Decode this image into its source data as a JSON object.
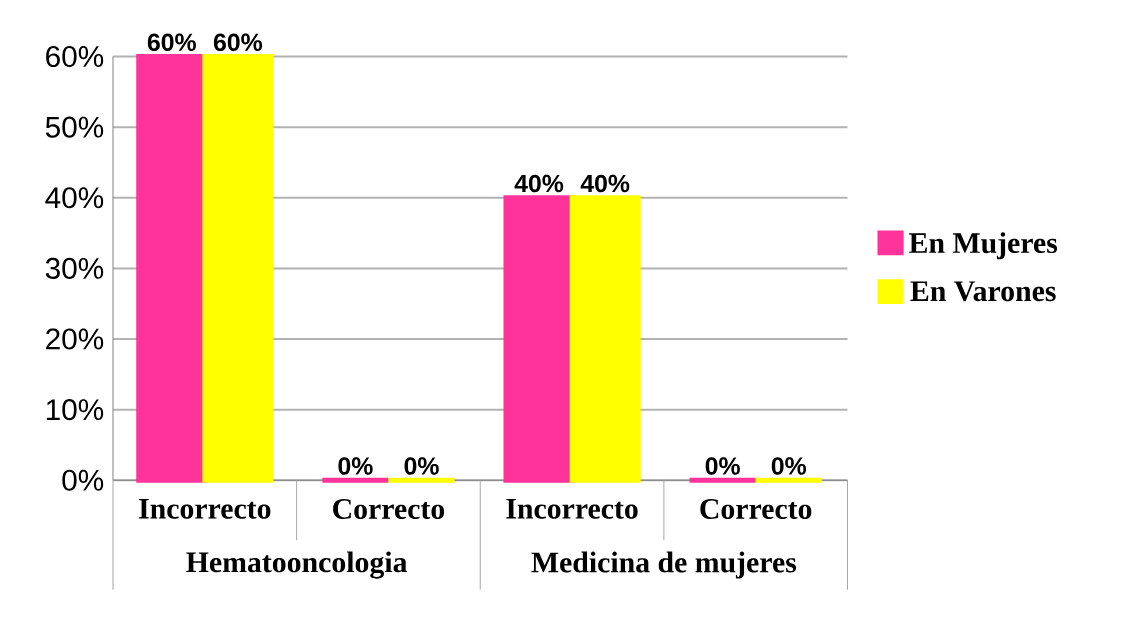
{
  "chart_data": {
    "type": "bar",
    "categories": [
      "Incorrecto",
      "Correcto",
      "Incorrecto",
      "Correcto"
    ],
    "series": [
      {
        "name": "En Mujeres",
        "color": "#ff3399",
        "values": [
          60,
          0,
          40,
          0
        ],
        "value_labels": [
          "60%",
          "0%",
          "40%",
          "0%"
        ]
      },
      {
        "name": "En Varones",
        "color": "#ffff00",
        "values": [
          60,
          0,
          40,
          0
        ],
        "value_labels": [
          "60%",
          "0%",
          "40%",
          "0%"
        ]
      }
    ],
    "annotations": [
      "Hematooncologia",
      "Medicina de mujeres"
    ],
    "ylim": [
      0,
      60
    ],
    "yticks": [
      {
        "value": 0,
        "label": "0%"
      },
      {
        "value": 10,
        "label": "10%"
      },
      {
        "value": 20,
        "label": "20%"
      },
      {
        "value": 30,
        "label": "30%"
      },
      {
        "value": 40,
        "label": "40%"
      },
      {
        "value": 50,
        "label": "50%"
      },
      {
        "value": 60,
        "label": "60%"
      }
    ],
    "grid": "y",
    "legend": "right"
  }
}
